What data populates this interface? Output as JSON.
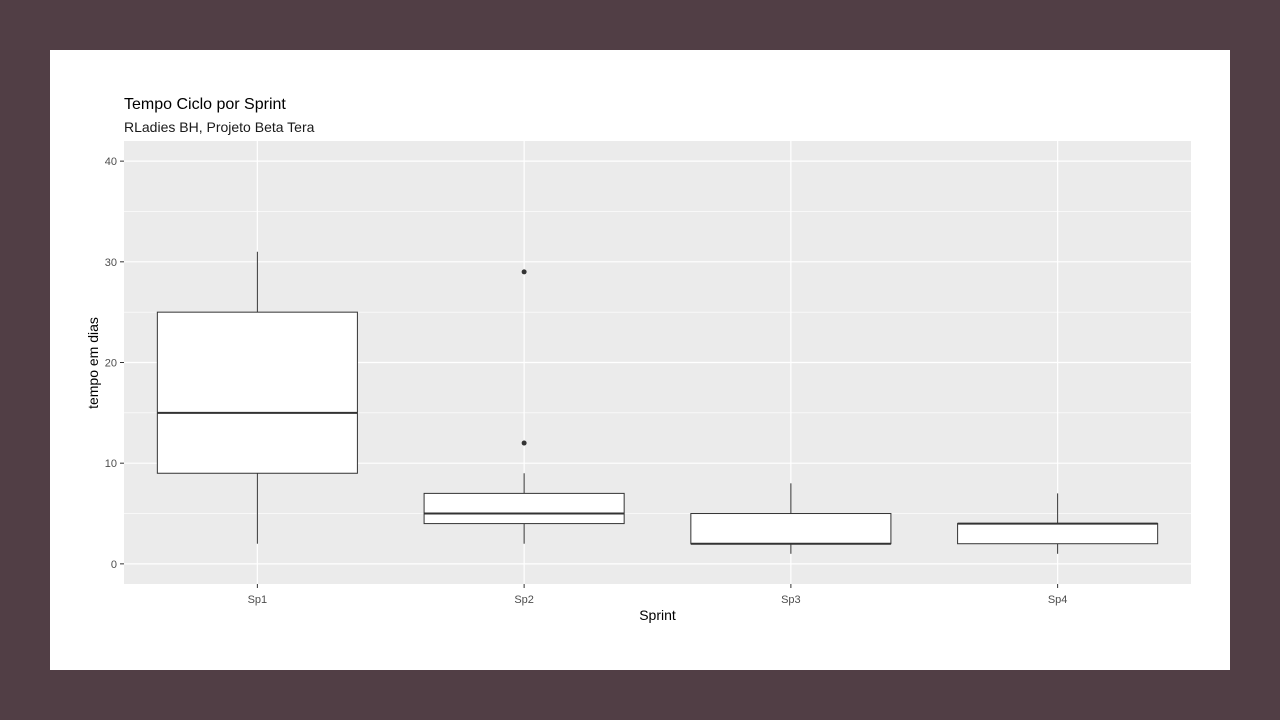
{
  "chart_data": {
    "type": "boxplot",
    "title": "Tempo Ciclo por Sprint",
    "subtitle": "RLadies BH, Projeto Beta Tera",
    "xlabel": "Sprint",
    "ylabel": "tempo em dias",
    "ylim": [
      -2,
      42
    ],
    "yticks": [
      0,
      10,
      20,
      30,
      40
    ],
    "grid": true,
    "categories": [
      "Sp1",
      "Sp2",
      "Sp3",
      "Sp4"
    ],
    "boxes": [
      {
        "category": "Sp1",
        "min": 2,
        "q1": 9,
        "median": 15,
        "q3": 25,
        "max": 31,
        "outliers": []
      },
      {
        "category": "Sp2",
        "min": 2,
        "q1": 4,
        "median": 5,
        "q3": 7,
        "max": 9,
        "outliers": [
          12,
          29
        ]
      },
      {
        "category": "Sp3",
        "min": 1,
        "q1": 2,
        "median": 2,
        "q3": 5,
        "max": 8,
        "outliers": []
      },
      {
        "category": "Sp4",
        "min": 1,
        "q1": 2,
        "median": 4,
        "q3": 4,
        "max": 7,
        "outliers": []
      }
    ],
    "colors": {
      "panel": "#ebebeb",
      "grid": "#ffffff",
      "box_fill": "#ffffff",
      "box_line": "#333333",
      "background": "#513e45"
    }
  }
}
